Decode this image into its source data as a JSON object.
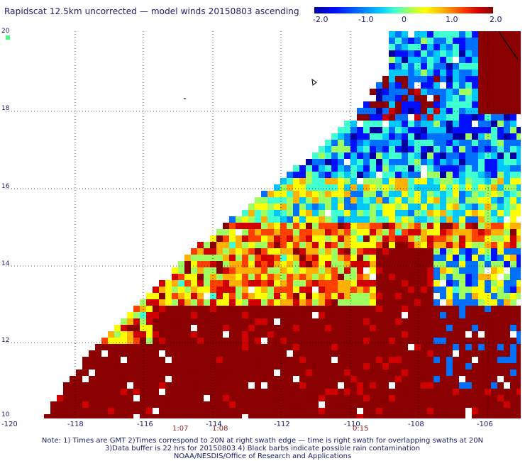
{
  "title": "Rapidscat 12.5km uncorrected — model winds 20150803 ascending",
  "colorbar": {
    "labels": [
      "-2.0",
      "-1.0",
      "0",
      "1.0",
      "2.0"
    ],
    "colors": [
      "#0000a0",
      "#0010ff",
      "#0070ff",
      "#00c8ff",
      "#40ffd0",
      "#a0ff60",
      "#ffff00",
      "#ffb000",
      "#ff4000",
      "#d00000",
      "#880000"
    ]
  },
  "axes": {
    "lon_labels": [
      "-120",
      "-118",
      "-116",
      "-114",
      "-112",
      "-110",
      "-108",
      "-106"
    ],
    "lat_labels": [
      "20",
      "18",
      "16",
      "14",
      "12",
      "10"
    ]
  },
  "times": [
    "1:07",
    "1:08",
    "0:15"
  ],
  "notes": [
    "Note: 1) Times are GMT 2)Times correspond to 20N at right swath edge — time is right swath for overlapping swaths at 20N",
    "3)Data buffer is 22 hrs for 20150803 4) Black barbs indicate possible rain contamination",
    "NOAA/NESDIS/Office of Research and Applications"
  ],
  "palette": {
    "land_rain": "#8b0000",
    "grid": "#000000"
  }
}
